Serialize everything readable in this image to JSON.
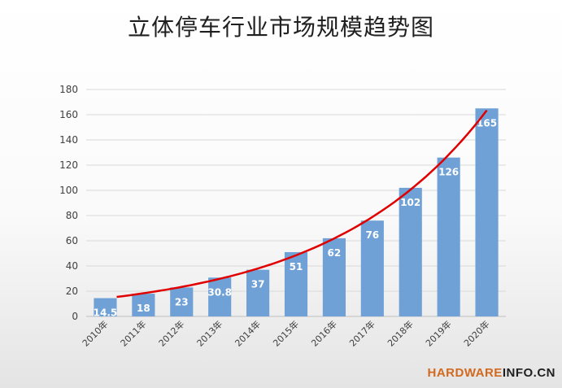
{
  "chart_data": {
    "type": "bar",
    "title": "立体停车行业市场规模趋势图",
    "categories": [
      "2010年",
      "2011年",
      "2012年",
      "2013年",
      "2014年",
      "2015年",
      "2016年",
      "2017年",
      "2018年",
      "2019年",
      "2020年"
    ],
    "values": [
      14.5,
      18,
      23,
      30.8,
      37,
      51,
      62,
      76,
      102,
      126,
      165
    ],
    "data_labels": [
      "14.5",
      "18",
      "23",
      "30.8",
      "37",
      "51",
      "62",
      "76",
      "102",
      "126",
      "165"
    ],
    "ylim": [
      0,
      180
    ],
    "yticks": [
      0,
      20,
      40,
      60,
      80,
      100,
      120,
      140,
      160,
      180
    ],
    "grid": true,
    "trendline": {
      "type": "exponential",
      "color": "#e00000"
    },
    "bar_color": "#6fa1d6"
  },
  "watermark": {
    "part1": "HARDWARE",
    "part2": "INFO.CN"
  }
}
